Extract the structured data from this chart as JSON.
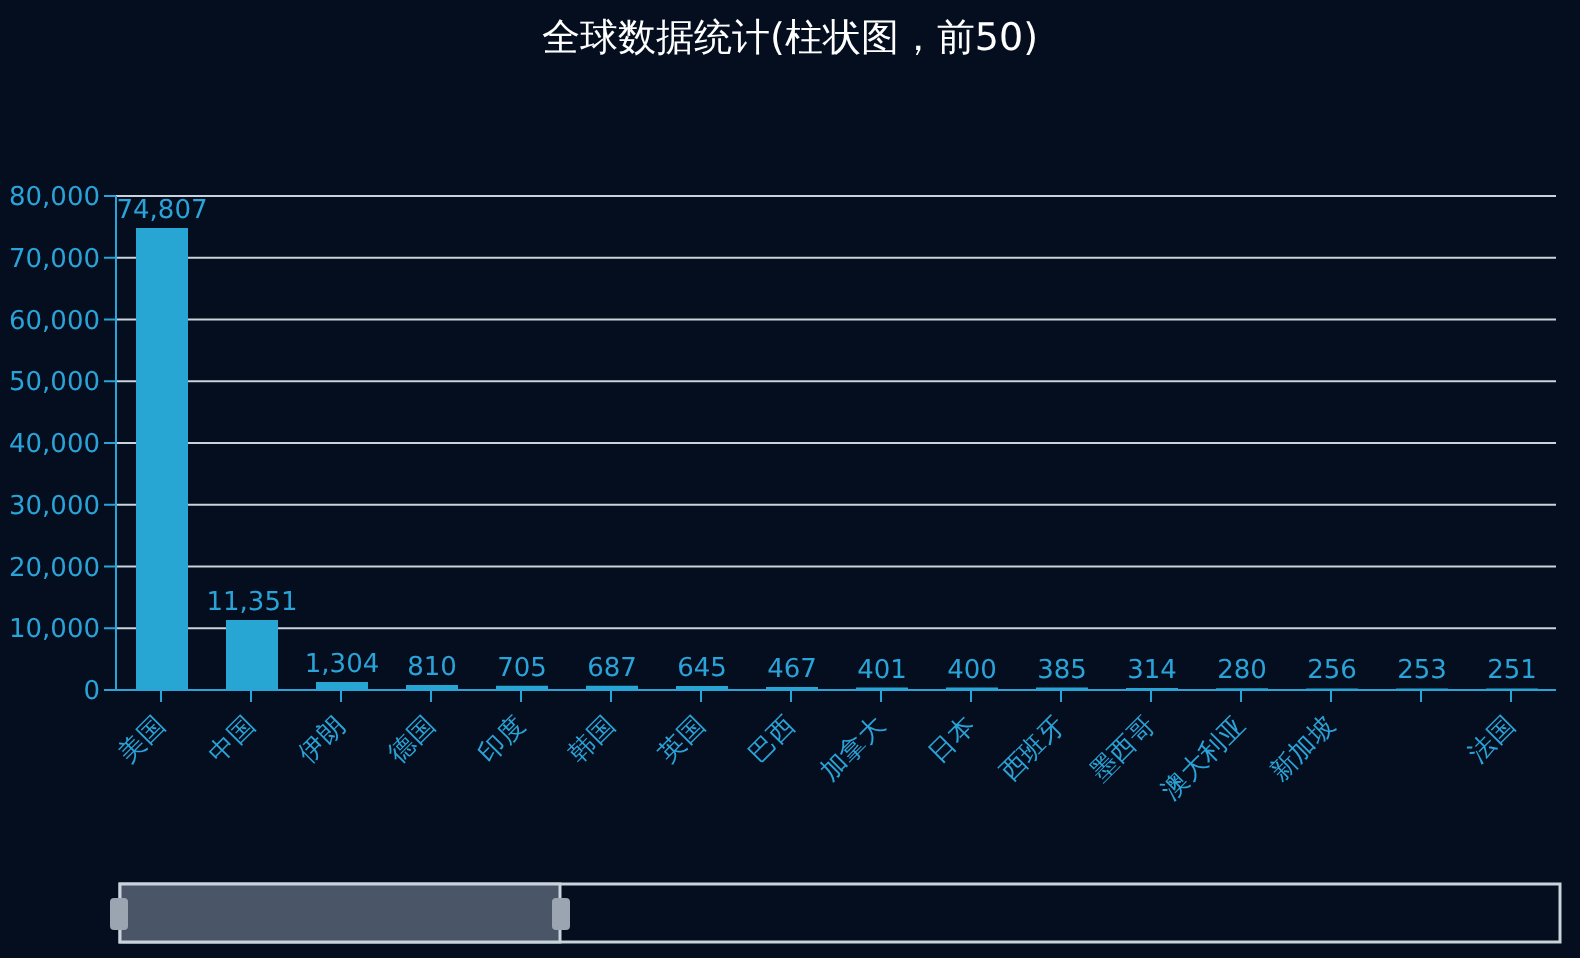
{
  "chart_data": {
    "type": "bar",
    "title": "全球数据统计(柱状图，前50)",
    "categories": [
      "美国",
      "中国",
      "伊朗",
      "德国",
      "印度",
      "韩国",
      "英国",
      "巴西",
      "加拿大",
      "日本",
      "西班牙",
      "墨西哥",
      "澳大利亚",
      "新加坡",
      null,
      "法国"
    ],
    "values": [
      74807,
      11351,
      1304,
      810,
      705,
      687,
      645,
      467,
      401,
      400,
      385,
      314,
      280,
      256,
      253,
      251
    ],
    "value_labels": [
      "74,807",
      "11,351",
      "1,304",
      "810",
      "705",
      "687",
      "645",
      "467",
      "401",
      "400",
      "385",
      "314",
      "280",
      "256",
      "253",
      "251"
    ],
    "color": "#27a6d4",
    "ylim": [
      0,
      80000
    ],
    "yticks": [
      0,
      {
        "value": 10000,
        "label": "10,000"
      },
      {
        "value": 20000,
        "label": "20,000"
      },
      {
        "value": 30000,
        "label": "30,000"
      },
      {
        "value": 40000,
        "label": "40,000"
      },
      {
        "value": 50000,
        "label": "50,000"
      },
      {
        "value": 60000,
        "label": "60,000"
      },
      {
        "value": 70000,
        "label": "70,000"
      },
      {
        "value": 80000,
        "label": "80,000"
      }
    ],
    "grid": "y"
  }
}
